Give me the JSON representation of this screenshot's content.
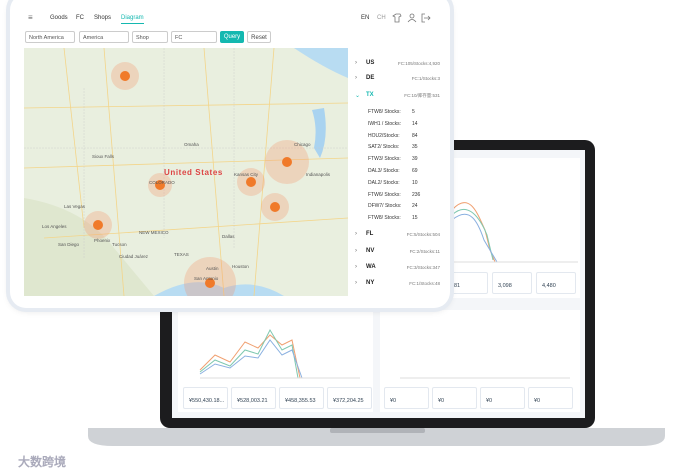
{
  "nav": {
    "items": [
      "Goods",
      "FC",
      "Shops",
      "Diagram"
    ],
    "lang": [
      "EN",
      "CH"
    ]
  },
  "filters": {
    "selects": [
      "North America",
      "America",
      "Shop",
      "FC"
    ],
    "buttons": [
      "Query",
      "Reset"
    ]
  },
  "map": {
    "country": "United States",
    "labels": [
      "COLORADO",
      "Las Vegas",
      "Phoenix",
      "Tucson",
      "Los Angeles",
      "San Diego",
      "NEW MEXICO",
      "Ciudad Juárez",
      "TEXAS",
      "Dallas",
      "Austin",
      "Houston",
      "San Antonio",
      "Kansas City",
      "Chicago",
      "Indianapolis",
      "Sioux Falls",
      "Omaha"
    ]
  },
  "tree": {
    "top": [
      {
        "code": "US",
        "info": "FC:105/Stocks:4,920"
      },
      {
        "code": "DE",
        "info": "FC:1/Stocks:3"
      },
      {
        "code": "TX",
        "info": "FC:10/库存量:531"
      }
    ],
    "children": [
      {
        "name": "FTW8/ Stocks:",
        "stocks": 5
      },
      {
        "name": "IWH1 / Stocks:",
        "stocks": 14
      },
      {
        "name": "HOU2/Stocks:",
        "stocks": 84
      },
      {
        "name": "SAT2/ Stocks:",
        "stocks": 35
      },
      {
        "name": "FTW3/ Stocks:",
        "stocks": 39
      },
      {
        "name": "DAL3/ Stocks:",
        "stocks": 69
      },
      {
        "name": "DAL2/ Stocks:",
        "stocks": 10
      },
      {
        "name": "FTW6/ Stocks:",
        "stocks": 236
      },
      {
        "name": "DFW7/ Stocks:",
        "stocks": 24
      },
      {
        "name": "FTW8/ Stocks:",
        "stocks": 15
      }
    ],
    "bottom": [
      {
        "code": "FL",
        "info": "FC:5/Stocks:504"
      },
      {
        "code": "NV",
        "info": "FC:2/Stocks:11"
      },
      {
        "code": "WA",
        "info": "FC:3/Stocks:347"
      },
      {
        "code": "NY",
        "info": "FC:1/Stocks:48"
      }
    ]
  },
  "laptop": {
    "top_cards": [
      "81",
      "3,098",
      "4,480"
    ],
    "left_cards": [
      "¥550,430.18...",
      "¥528,003.21",
      "¥458,355.53",
      "¥372,204.25"
    ],
    "right_cards": [
      "¥0",
      "¥0",
      "¥0",
      "¥0"
    ]
  },
  "watermark": "大数跨境"
}
